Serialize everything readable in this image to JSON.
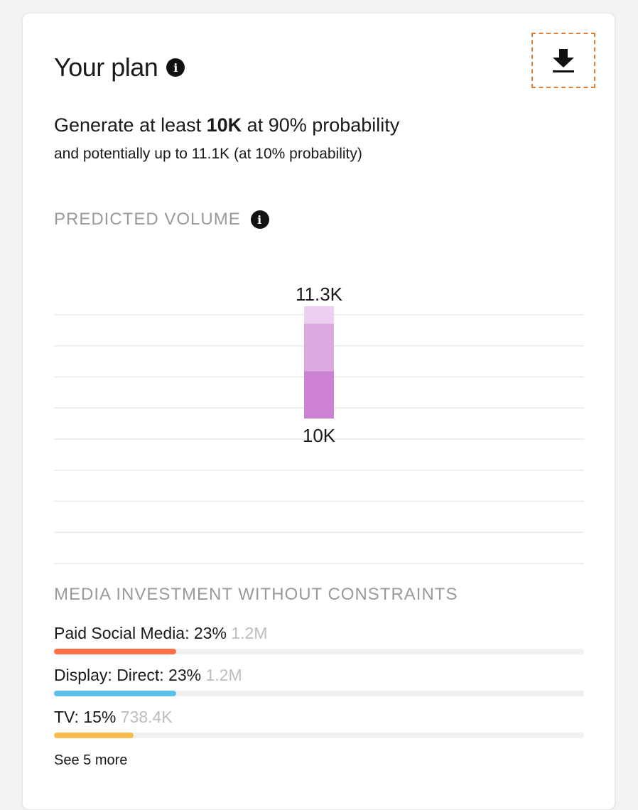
{
  "card": {
    "title": "Your plan",
    "title_info_icon": "info-icon",
    "download_icon": "download-icon"
  },
  "summary": {
    "prefix": "Generate at least ",
    "target": "10K",
    "suffix": " at 90% probability",
    "subline": "and potentially up to 11.1K (at 10% probability)"
  },
  "predicted_volume": {
    "label": "PREDICTED VOLUME",
    "info_icon": "info-icon"
  },
  "chart_data": {
    "type": "bar",
    "categories": [
      ""
    ],
    "top_label": "11.3K",
    "bottom_label": "10K",
    "segments": [
      {
        "from": 10000,
        "to": 10550,
        "color": "#cc82d3"
      },
      {
        "from": 10550,
        "to": 11100,
        "color": "#dcaadf"
      },
      {
        "from": 11100,
        "to": 11300,
        "color": "#ecd0ef"
      }
    ],
    "gridlines": 9,
    "grid": true
  },
  "media": {
    "label": "MEDIA INVESTMENT WITHOUT CONSTRAINTS",
    "channels": [
      {
        "name": "Paid Social Media: 23%",
        "amount": "1.2M",
        "share": 0.23,
        "color": "#ff7043"
      },
      {
        "name": "Display: Direct: 23%",
        "amount": "1.2M",
        "share": 0.23,
        "color": "#5bc0eb"
      },
      {
        "name": "TV: 15%",
        "amount": "738.4K",
        "share": 0.15,
        "color": "#fbbc4e"
      }
    ],
    "see_more": "See 5 more"
  }
}
